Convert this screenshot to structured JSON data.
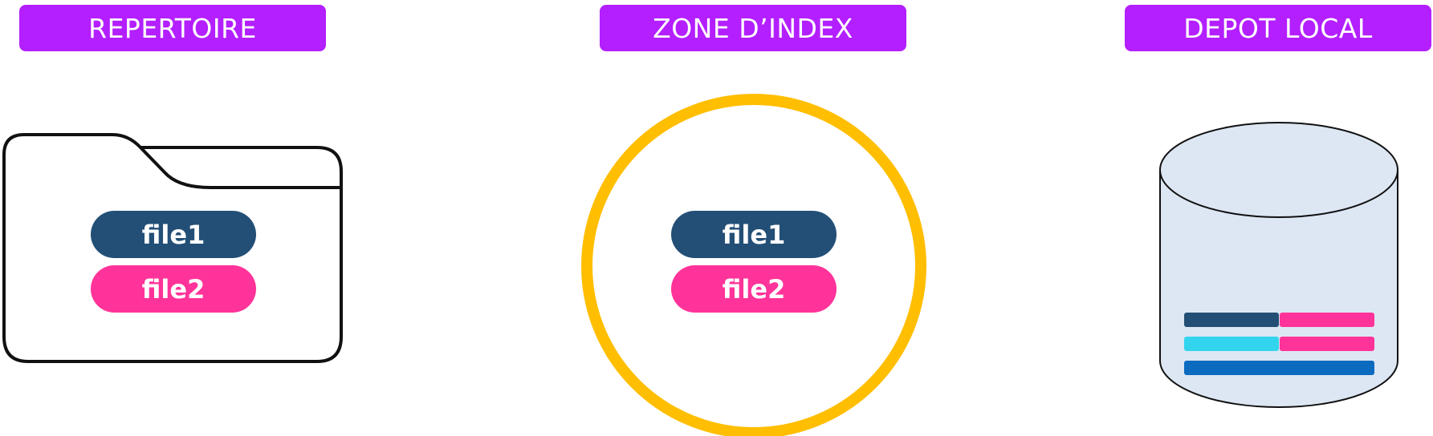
{
  "sections": {
    "repertoire": {
      "title": "REPERTOIRE",
      "files": [
        "file1",
        "file2"
      ]
    },
    "zone_index": {
      "title": "ZONE D’INDEX",
      "files": [
        "file1",
        "file2"
      ]
    },
    "depot_local": {
      "title": "DEPOT LOCAL"
    }
  },
  "colors": {
    "label_bg": "#b31fff",
    "file1": "#234f76",
    "file2": "#ff3399",
    "circle": "#ffbe00",
    "cylinder_fill": "#dde7f3",
    "bar_navy": "#234f76",
    "bar_pink": "#ff3399",
    "bar_cyan": "#33d4ee",
    "bar_blue": "#0b6bbf"
  },
  "icons": [
    "folder-icon",
    "index-circle-icon",
    "database-cylinder-icon"
  ]
}
